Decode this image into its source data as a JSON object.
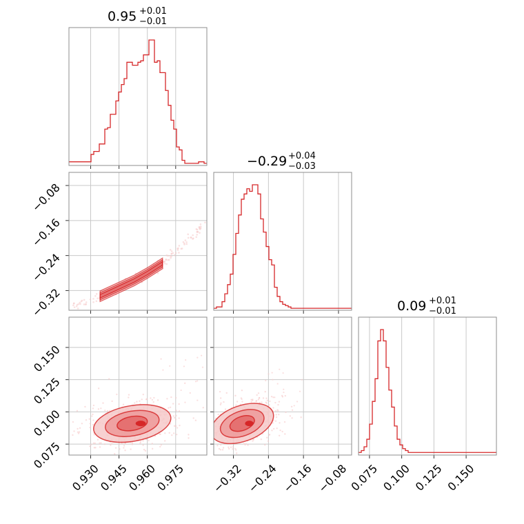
{
  "colors": {
    "accent": "#d62728",
    "fill_light": "#f6c9c9",
    "fill_mid": "#ee9a9a",
    "fill_dark": "#e46c6c",
    "grid": "#c8c8c8",
    "frame": "#8c8c8c"
  },
  "chart_data": {
    "type": "corner",
    "grid": true,
    "parameters": [
      {
        "id": "p0",
        "title_value": "0.95",
        "title_plus": "+0.01",
        "title_minus": "−0.01",
        "range": [
          0.9185,
          0.9915
        ],
        "ticks": [
          0.93,
          0.945,
          0.96,
          0.975
        ],
        "tick_labels": [
          "0.930",
          "0.945",
          "0.960",
          "0.975"
        ],
        "hist": {
          "edges_start": 0.9185,
          "bin_width": 0.00146,
          "counts": [
            2,
            2,
            2,
            2,
            2,
            2,
            2,
            2,
            7,
            9,
            9,
            14,
            14,
            24,
            25,
            34,
            34,
            43,
            49,
            54,
            58,
            69,
            69,
            67,
            67,
            69,
            70,
            74,
            74,
            84,
            84,
            69,
            70,
            62,
            62,
            50,
            40,
            30,
            24,
            12,
            10,
            3,
            1,
            1,
            1,
            1,
            1,
            2,
            2,
            1
          ]
        }
      },
      {
        "id": "p1",
        "title_value": "−0.29",
        "title_plus": "+0.04",
        "title_minus": "−0.03",
        "range": [
          -0.365,
          -0.05
        ],
        "ticks": [
          -0.32,
          -0.24,
          -0.16,
          -0.08
        ],
        "tick_labels": [
          "−0.32",
          "−0.24",
          "−0.16",
          "−0.08"
        ],
        "hist": {
          "edges_start": -0.365,
          "bin_width": 0.0063,
          "counts": [
            1,
            2,
            2,
            6,
            12,
            19,
            27,
            42,
            58,
            72,
            84,
            88,
            92,
            90,
            95,
            95,
            88,
            69,
            59,
            48,
            38,
            34,
            17,
            10,
            6,
            4,
            3,
            2,
            1,
            1,
            1,
            1,
            1,
            1,
            1,
            1,
            1,
            1,
            1,
            1,
            1,
            1,
            1,
            1,
            1,
            1,
            1,
            1,
            1,
            1
          ]
        }
      },
      {
        "id": "p2",
        "title_value": "0.09",
        "title_plus": "+0.01",
        "title_minus": "−0.01",
        "range": [
          0.0665,
          0.1735
        ],
        "ticks": [
          0.075,
          0.1,
          0.125,
          0.15
        ],
        "tick_labels": [
          "0.075",
          "0.100",
          "0.125",
          "0.150"
        ],
        "hist": {
          "edges_start": 0.0665,
          "bin_width": 0.00214,
          "counts": [
            1,
            2,
            4,
            8,
            16,
            28,
            40,
            60,
            66,
            60,
            46,
            34,
            25,
            15,
            8,
            5,
            3,
            2,
            1,
            1,
            1,
            1,
            1,
            1,
            1,
            1,
            1,
            1,
            1,
            1,
            1,
            1,
            1,
            1,
            1,
            1,
            1,
            1,
            1,
            1,
            1,
            1,
            1,
            1,
            1,
            1,
            1,
            1,
            1,
            1
          ]
        }
      }
    ],
    "pairs": [
      {
        "x_param": 0,
        "y_param": 1,
        "center": [
          0.952,
          -0.292
        ],
        "trend": [
          [
            0.919,
            -0.362
          ],
          [
            0.935,
            -0.333
          ],
          [
            0.945,
            -0.313
          ],
          [
            0.953,
            -0.297
          ],
          [
            0.96,
            -0.28
          ],
          [
            0.968,
            -0.258
          ],
          [
            0.978,
            -0.22
          ],
          [
            0.991,
            -0.165
          ]
        ],
        "halfwidth": 0.006,
        "contours": "narrow-band"
      },
      {
        "x_param": 0,
        "y_param": 2,
        "center": [
          0.952,
          0.091
        ],
        "rx": 0.018,
        "ry": 0.012,
        "rot_deg": -10,
        "contours": "filled-blob"
      },
      {
        "x_param": 1,
        "y_param": 2,
        "center": [
          -0.3,
          0.091
        ],
        "rx": 0.065,
        "ry": 0.012,
        "rot_deg": -20,
        "contours": "filled-blob"
      }
    ]
  }
}
